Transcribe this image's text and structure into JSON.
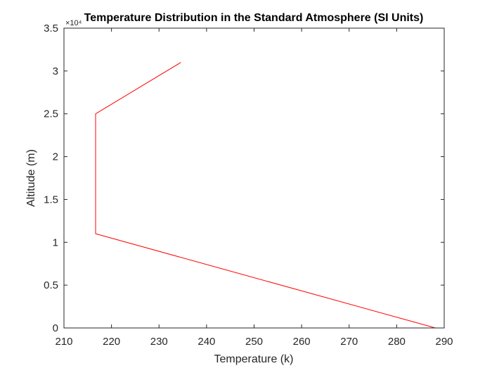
{
  "chart_data": {
    "type": "line",
    "title": "Temperature Distribution in the Standard Atmosphere (SI Units)",
    "xlabel": "Temperature (k)",
    "ylabel": "Altitude (m)",
    "xlim": [
      210,
      290
    ],
    "ylim": [
      0,
      35000
    ],
    "y_exponent_label": "×10⁴",
    "x_ticks": [
      210,
      220,
      230,
      240,
      250,
      260,
      270,
      280,
      290
    ],
    "x_tick_labels": [
      "210",
      "220",
      "230",
      "240",
      "250",
      "260",
      "270",
      "280",
      "290"
    ],
    "y_ticks": [
      0,
      5000,
      10000,
      15000,
      20000,
      25000,
      30000,
      35000
    ],
    "y_tick_labels": [
      "0",
      "0.5",
      "1",
      "1.5",
      "2",
      "2.5",
      "3",
      "3.5"
    ],
    "grid": false,
    "line_color": "#ff0000",
    "series": [
      {
        "x": [
          288.16,
          216.66,
          216.66,
          234.6
        ],
        "y": [
          0,
          11000,
          25000,
          31000
        ]
      }
    ]
  }
}
